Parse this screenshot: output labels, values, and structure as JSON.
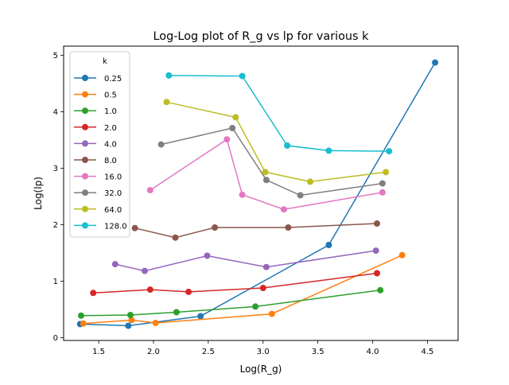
{
  "chart_data": {
    "type": "line",
    "title": "Log-Log plot of R_g vs lp for various k",
    "xlabel": "Log(R_g)",
    "ylabel": "Log(lp)",
    "xlim": [
      1.18,
      4.78
    ],
    "ylim": [
      -0.05,
      5.16
    ],
    "xticks": [
      1.5,
      2.0,
      2.5,
      3.0,
      3.5,
      4.0,
      4.5
    ],
    "xtick_labels": [
      "1.5",
      "2.0",
      "2.5",
      "3.0",
      "3.5",
      "4.0",
      "4.5"
    ],
    "yticks": [
      0,
      1,
      2,
      3,
      4,
      5
    ],
    "ytick_labels": [
      "0",
      "1",
      "2",
      "3",
      "4",
      "5"
    ],
    "grid": false,
    "legend": {
      "title": "k",
      "placement": "upper-left"
    },
    "series": [
      {
        "name": "0.25",
        "color": "#1f77b4",
        "points": [
          [
            1.33,
            0.24
          ],
          [
            1.77,
            0.21
          ],
          [
            2.43,
            0.38
          ],
          [
            3.6,
            1.64
          ],
          [
            4.57,
            4.87
          ]
        ]
      },
      {
        "name": "0.5",
        "color": "#ff7f0e",
        "points": [
          [
            1.36,
            0.25
          ],
          [
            1.8,
            0.31
          ],
          [
            2.02,
            0.26
          ],
          [
            3.08,
            0.42
          ],
          [
            4.27,
            1.46
          ]
        ]
      },
      {
        "name": "1.0",
        "color": "#2ca02c",
        "points": [
          [
            1.34,
            0.39
          ],
          [
            1.79,
            0.4
          ],
          [
            2.21,
            0.45
          ],
          [
            2.93,
            0.55
          ],
          [
            4.07,
            0.84
          ]
        ]
      },
      {
        "name": "2.0",
        "color": "#d62728",
        "points": [
          [
            1.45,
            0.79
          ],
          [
            1.97,
            0.85
          ],
          [
            2.32,
            0.81
          ],
          [
            3.0,
            0.88
          ],
          [
            4.04,
            1.14
          ]
        ]
      },
      {
        "name": "4.0",
        "color": "#9467bd",
        "points": [
          [
            1.65,
            1.3
          ],
          [
            1.92,
            1.18
          ],
          [
            2.49,
            1.45
          ],
          [
            3.03,
            1.25
          ],
          [
            4.03,
            1.54
          ]
        ]
      },
      {
        "name": "8.0",
        "color": "#8c564b",
        "points": [
          [
            1.83,
            1.94
          ],
          [
            2.2,
            1.77
          ],
          [
            2.56,
            1.95
          ],
          [
            3.23,
            1.95
          ],
          [
            4.04,
            2.02
          ]
        ]
      },
      {
        "name": "16.0",
        "color": "#e377c2",
        "points": [
          [
            1.97,
            2.61
          ],
          [
            2.67,
            3.51
          ],
          [
            2.81,
            2.53
          ],
          [
            3.19,
            2.27
          ],
          [
            4.09,
            2.57
          ]
        ]
      },
      {
        "name": "32.0",
        "color": "#7f7f7f",
        "points": [
          [
            2.07,
            3.42
          ],
          [
            2.72,
            3.71
          ],
          [
            3.03,
            2.79
          ],
          [
            3.34,
            2.52
          ],
          [
            4.09,
            2.73
          ]
        ]
      },
      {
        "name": "64.0",
        "color": "#bcbd22",
        "points": [
          [
            2.12,
            4.17
          ],
          [
            2.75,
            3.9
          ],
          [
            3.02,
            2.93
          ],
          [
            3.43,
            2.76
          ],
          [
            4.12,
            2.93
          ]
        ]
      },
      {
        "name": "128.0",
        "color": "#17becf",
        "points": [
          [
            2.14,
            4.64
          ],
          [
            2.81,
            4.63
          ],
          [
            3.22,
            3.4
          ],
          [
            3.6,
            3.31
          ],
          [
            4.15,
            3.3
          ]
        ]
      }
    ]
  }
}
